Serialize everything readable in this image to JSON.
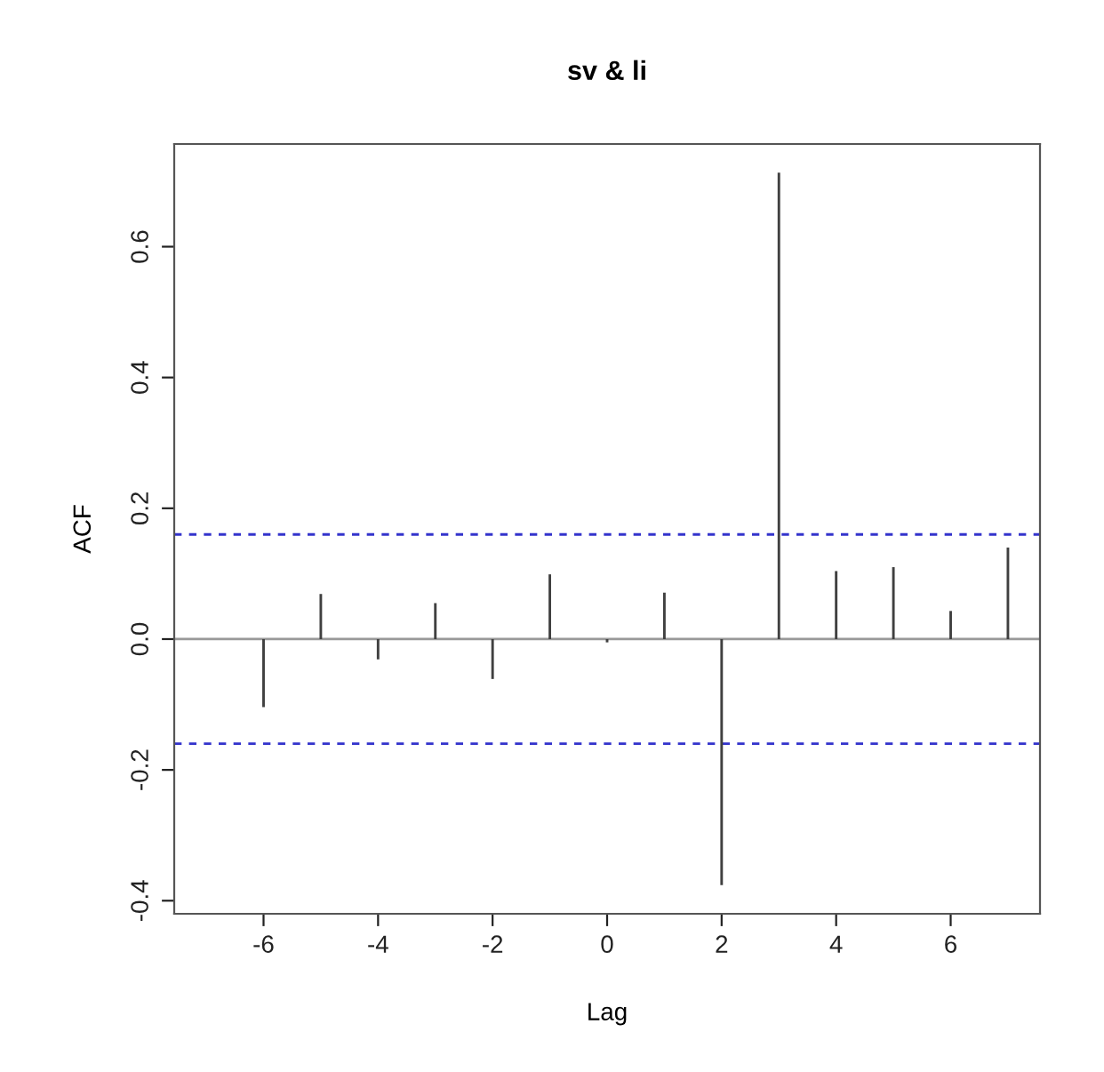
{
  "chart_data": {
    "type": "bar",
    "title": "sv & li",
    "xlabel": "Lag",
    "ylabel": "ACF",
    "x": [
      -6,
      -5,
      -4,
      -3,
      -2,
      -1,
      0,
      1,
      2,
      3,
      4,
      5,
      6,
      7
    ],
    "series": [
      {
        "color": "#404040",
        "values": [
          -0.104,
          0.069,
          -0.031,
          0.055,
          -0.061,
          0.099,
          -0.005,
          0.071,
          -0.376,
          0.713,
          0.104,
          0.11,
          0.043,
          0.14
        ]
      }
    ],
    "xlim": [
      -7.56,
      7.56
    ],
    "ylim": [
      -0.42,
      0.757
    ],
    "xticks": [
      -6,
      -4,
      -2,
      0,
      2,
      4,
      6
    ],
    "yticks": [
      {
        "value": -0.4,
        "label": "-0.4"
      },
      {
        "value": -0.2,
        "label": "-0.2"
      },
      {
        "value": 0,
        "label": "0.0"
      },
      {
        "value": 0.2,
        "label": "0.2"
      },
      {
        "value": 0.4,
        "label": "0.4"
      },
      {
        "value": 0.6,
        "label": "0.6"
      }
    ],
    "ref_lines": [
      {
        "axis": "y",
        "value": 0,
        "color": "#999999",
        "line_style": "solid"
      },
      {
        "axis": "y",
        "value": 0.16,
        "color": "#3333cc",
        "line_style": "dashed"
      },
      {
        "axis": "y",
        "value": -0.16,
        "color": "#3333cc",
        "line_style": "dashed"
      }
    ],
    "grid": false,
    "legend": false
  }
}
